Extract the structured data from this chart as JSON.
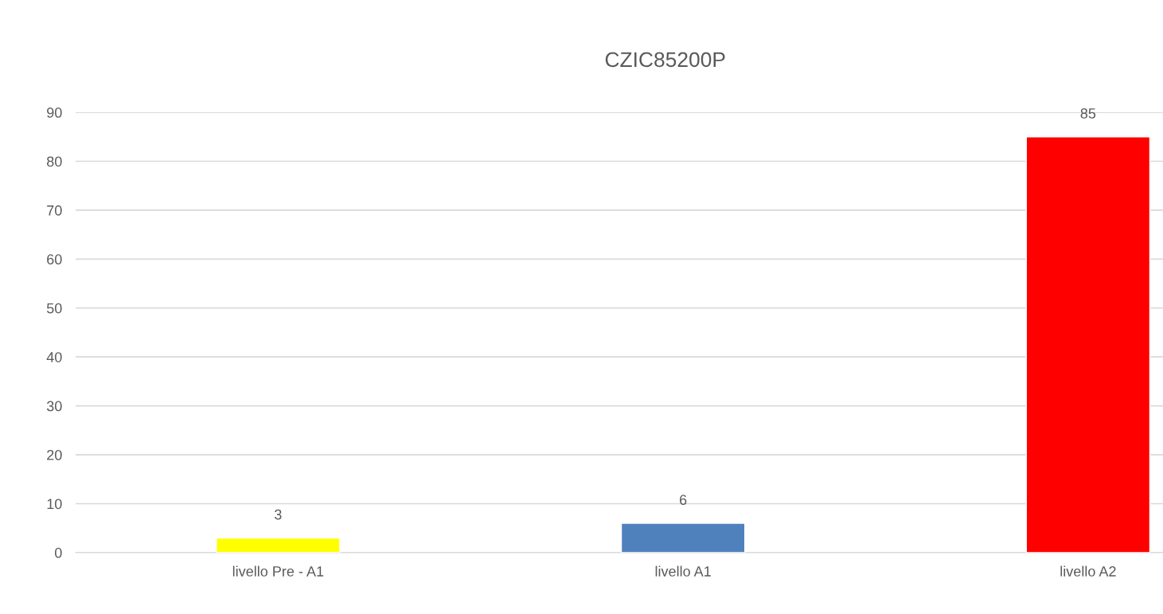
{
  "chart_data": {
    "type": "bar",
    "title": "CZIC85200P",
    "categories": [
      "livello Pre - A1",
      "livello A1",
      "livello A2"
    ],
    "values": [
      3,
      6,
      85
    ],
    "colors": [
      "#ffff00",
      "#4f81bd",
      "#ff0000"
    ],
    "ylim": [
      0,
      90
    ],
    "yticks": [
      0,
      10,
      20,
      30,
      40,
      50,
      60,
      70,
      80,
      90
    ],
    "grid": "y",
    "legend": false,
    "data_labels": true
  }
}
